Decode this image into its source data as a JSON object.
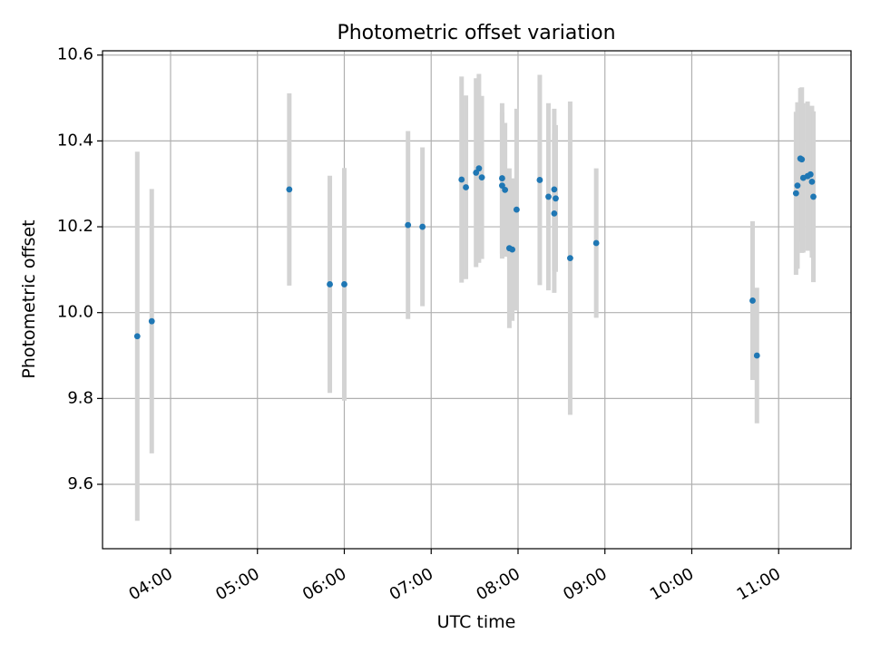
{
  "chart_data": {
    "type": "scatter",
    "title": "Photometric offset variation",
    "xlabel": "UTC time",
    "ylabel": "Photometric offset",
    "grid": true,
    "legend": "none",
    "xlim": [
      "03:13",
      "11:50"
    ],
    "ylim": [
      9.45,
      10.61
    ],
    "x_ticks": [
      "04:00",
      "05:00",
      "06:00",
      "07:00",
      "08:00",
      "09:00",
      "10:00",
      "11:00"
    ],
    "y_ticks": [
      9.6,
      9.8,
      10.0,
      10.2,
      10.4,
      10.6
    ],
    "colors": {
      "points": "#1f77b4",
      "errorbars": "#d3d3d3",
      "grid": "#b0b0b0"
    },
    "series": [
      {
        "points": [
          {
            "x": "03:37",
            "y": 9.945,
            "lo": 9.515,
            "hi": 10.375
          },
          {
            "x": "03:47",
            "y": 9.98,
            "lo": 9.672,
            "hi": 10.288
          },
          {
            "x": "05:22",
            "y": 10.287,
            "lo": 10.063,
            "hi": 10.511
          },
          {
            "x": "05:50",
            "y": 10.066,
            "lo": 9.813,
            "hi": 10.319
          },
          {
            "x": "06:00",
            "y": 10.066,
            "lo": 9.795,
            "hi": 10.337
          },
          {
            "x": "06:44",
            "y": 10.204,
            "lo": 9.985,
            "hi": 10.423
          },
          {
            "x": "06:54",
            "y": 10.2,
            "lo": 10.015,
            "hi": 10.385
          },
          {
            "x": "07:21",
            "y": 10.31,
            "lo": 10.07,
            "hi": 10.55
          },
          {
            "x": "07:24",
            "y": 10.292,
            "lo": 10.078,
            "hi": 10.506
          },
          {
            "x": "07:31",
            "y": 10.326,
            "lo": 10.106,
            "hi": 10.546
          },
          {
            "x": "07:33",
            "y": 10.336,
            "lo": 10.116,
            "hi": 10.556
          },
          {
            "x": "07:35",
            "y": 10.315,
            "lo": 10.125,
            "hi": 10.505
          },
          {
            "x": "07:49",
            "y": 10.313,
            "lo": 10.138,
            "hi": 10.488
          },
          {
            "x": "07:49",
            "y": 10.296,
            "lo": 10.126,
            "hi": 10.466
          },
          {
            "x": "07:51",
            "y": 10.286,
            "lo": 10.13,
            "hi": 10.442
          },
          {
            "x": "07:54",
            "y": 10.15,
            "lo": 9.964,
            "hi": 10.336
          },
          {
            "x": "07:56",
            "y": 10.147,
            "lo": 9.981,
            "hi": 10.313
          },
          {
            "x": "07:59",
            "y": 10.24,
            "lo": 10.005,
            "hi": 10.475
          },
          {
            "x": "08:15",
            "y": 10.309,
            "lo": 10.064,
            "hi": 10.554
          },
          {
            "x": "08:21",
            "y": 10.27,
            "lo": 10.052,
            "hi": 10.488
          },
          {
            "x": "08:25",
            "y": 10.287,
            "lo": 10.099,
            "hi": 10.475
          },
          {
            "x": "08:25",
            "y": 10.231,
            "lo": 10.046,
            "hi": 10.416
          },
          {
            "x": "08:26",
            "y": 10.266,
            "lo": 10.095,
            "hi": 10.437
          },
          {
            "x": "08:36",
            "y": 10.127,
            "lo": 9.762,
            "hi": 10.492
          },
          {
            "x": "08:54",
            "y": 10.162,
            "lo": 9.988,
            "hi": 10.336
          },
          {
            "x": "10:42",
            "y": 10.028,
            "lo": 9.843,
            "hi": 10.213
          },
          {
            "x": "10:45",
            "y": 9.9,
            "lo": 9.742,
            "hi": 10.058
          },
          {
            "x": "11:12",
            "y": 10.278,
            "lo": 10.088,
            "hi": 10.468
          },
          {
            "x": "11:13",
            "y": 10.296,
            "lo": 10.102,
            "hi": 10.49
          },
          {
            "x": "11:15",
            "y": 10.359,
            "lo": 10.165,
            "hi": 10.523
          },
          {
            "x": "11:16",
            "y": 10.357,
            "lo": 10.139,
            "hi": 10.525
          },
          {
            "x": "11:17",
            "y": 10.314,
            "lo": 10.14,
            "hi": 10.488
          },
          {
            "x": "11:20",
            "y": 10.318,
            "lo": 10.144,
            "hi": 10.492
          },
          {
            "x": "11:22",
            "y": 10.322,
            "lo": 10.152,
            "hi": 10.48
          },
          {
            "x": "11:23",
            "y": 10.305,
            "lo": 10.128,
            "hi": 10.482
          },
          {
            "x": "11:24",
            "y": 10.27,
            "lo": 10.071,
            "hi": 10.469
          }
        ]
      }
    ]
  }
}
